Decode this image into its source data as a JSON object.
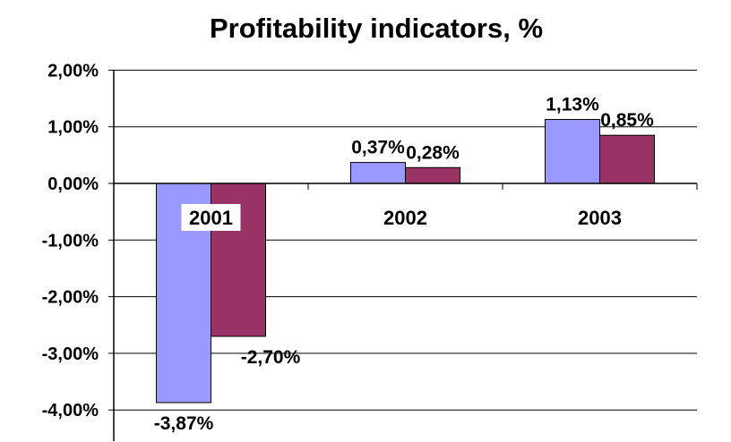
{
  "chart_data": {
    "type": "bar",
    "title": "Profitability indicators, %",
    "categories": [
      "2001",
      "2002",
      "2003"
    ],
    "series": [
      {
        "values": [
          -3.87,
          0.37,
          1.13
        ],
        "labels": [
          "-3,87%",
          "0,37%",
          "1,13%"
        ],
        "color": "#9999ff"
      },
      {
        "values": [
          -2.7,
          0.28,
          0.85
        ],
        "labels": [
          "-2,70%",
          "0,28%",
          "0,85%"
        ],
        "color": "#993366"
      }
    ],
    "y_ticks": [
      {
        "value": 2,
        "label": "2,00%"
      },
      {
        "value": 1,
        "label": "1,00%"
      },
      {
        "value": 0,
        "label": "0,00%"
      },
      {
        "value": -1,
        "label": "-1,00%"
      },
      {
        "value": -2,
        "label": "-2,00%"
      },
      {
        "value": -3,
        "label": "-3,00%"
      },
      {
        "value": -4,
        "label": "-4,00%"
      }
    ],
    "ylim": [
      -4.5,
      2
    ],
    "grid": true,
    "legend": "none"
  }
}
